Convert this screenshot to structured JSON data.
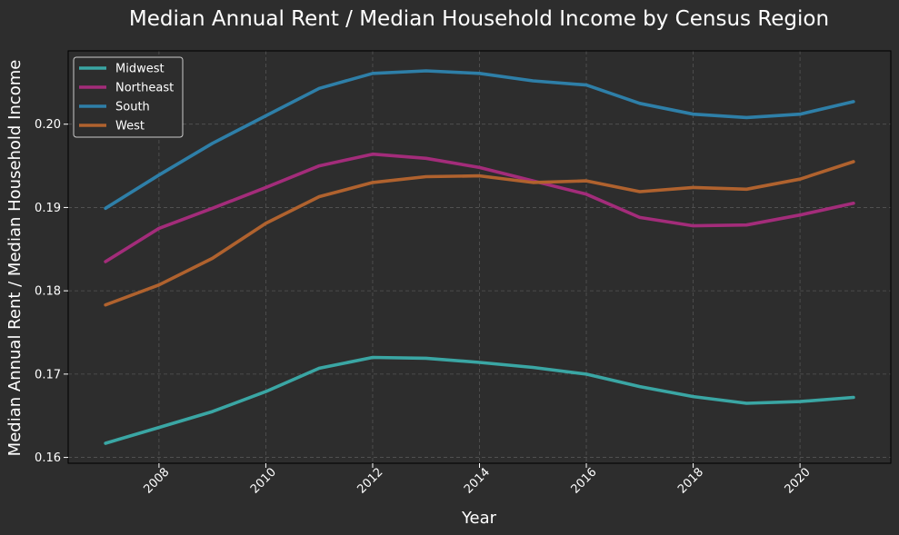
{
  "chart_data": {
    "type": "line",
    "title": "Median Annual Rent / Median Household Income by Census Region",
    "xlabel": "Year",
    "ylabel": "Median Annual Rent / Median Household Income",
    "xlim": [
      2006.3,
      2021.7
    ],
    "ylim": [
      0.1593,
      0.2088
    ],
    "x": [
      2007,
      2008,
      2009,
      2010,
      2011,
      2012,
      2013,
      2014,
      2015,
      2016,
      2017,
      2018,
      2019,
      2020,
      2021
    ],
    "xticks": [
      2008,
      2010,
      2012,
      2014,
      2016,
      2018,
      2020
    ],
    "xtick_labels": [
      "2008",
      "2010",
      "2012",
      "2014",
      "2016",
      "2018",
      "2020"
    ],
    "yticks": [
      0.16,
      0.17,
      0.18,
      0.19,
      0.2
    ],
    "ytick_labels": [
      "0.16",
      "0.17",
      "0.18",
      "0.19",
      "0.20"
    ],
    "grid": true,
    "legend_position": "top-left",
    "series": [
      {
        "name": "Midwest",
        "color": "#3aa6a4",
        "values": [
          0.1617,
          0.1636,
          0.1655,
          0.1679,
          0.1707,
          0.172,
          0.1719,
          0.1714,
          0.1708,
          0.17,
          0.1685,
          0.1673,
          0.1665,
          0.1667,
          0.1672
        ]
      },
      {
        "name": "Northeast",
        "color": "#a32c7a",
        "values": [
          0.1835,
          0.1875,
          0.1899,
          0.1924,
          0.195,
          0.1964,
          0.1959,
          0.1948,
          0.1932,
          0.1916,
          0.1888,
          0.1878,
          0.1879,
          0.1891,
          0.1905
        ]
      },
      {
        "name": "South",
        "color": "#2e7fa8",
        "values": [
          0.1899,
          0.1939,
          0.1977,
          0.201,
          0.2043,
          0.2061,
          0.2064,
          0.2061,
          0.2052,
          0.2047,
          0.2025,
          0.2012,
          0.2008,
          0.2012,
          0.2027
        ]
      },
      {
        "name": "West",
        "color": "#b0622e",
        "values": [
          0.1783,
          0.1807,
          0.1839,
          0.1881,
          0.1913,
          0.193,
          0.1937,
          0.1938,
          0.193,
          0.1932,
          0.1919,
          0.1924,
          0.1922,
          0.1934,
          0.1955
        ]
      }
    ]
  }
}
